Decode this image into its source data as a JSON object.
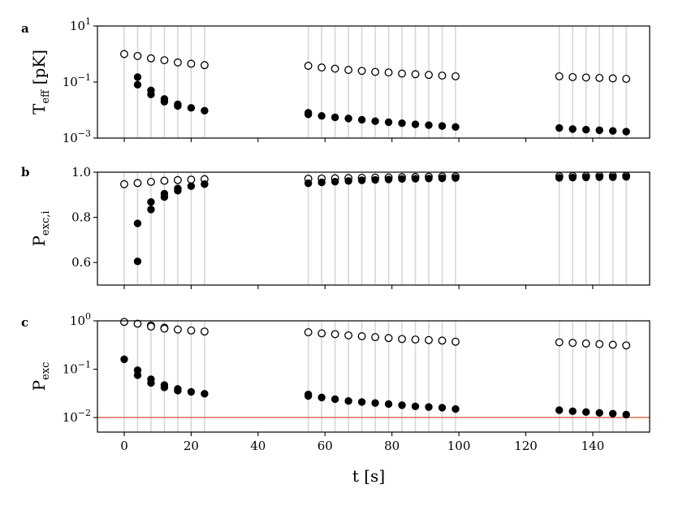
{
  "figure": {
    "xlabel": "t [s]",
    "x_ticks": [
      0,
      20,
      40,
      60,
      80,
      100,
      120,
      140
    ],
    "xlim": [
      -8,
      157
    ],
    "grey_line_times": [
      0,
      4,
      8,
      12,
      16,
      20,
      24,
      55,
      59,
      63,
      67,
      71,
      75,
      79,
      83,
      87,
      91,
      95,
      99,
      130,
      134,
      138,
      142,
      146,
      150
    ],
    "reference_line_color": "#e07860"
  },
  "chart_data": [
    {
      "type": "scatter",
      "panel_letter": "a",
      "ylabel_main": "T",
      "ylabel_sub": "eff",
      "ylabel_unit": " [pK]",
      "yscale": "log",
      "ylim": [
        0.001,
        10
      ],
      "y_ticks": [
        {
          "value": 10,
          "mantissa": "10",
          "exp": "1"
        },
        {
          "value": 0.1,
          "mantissa": "10",
          "exp": "−1"
        },
        {
          "value": 0.001,
          "mantissa": "10",
          "exp": "−3"
        }
      ],
      "series": [
        {
          "marker": "open",
          "x": [
            0,
            4,
            8,
            12,
            16,
            20,
            24,
            55,
            59,
            63,
            67,
            71,
            75,
            79,
            83,
            87,
            91,
            95,
            99,
            130,
            134,
            138,
            142,
            146,
            150
          ],
          "y": [
            1.0,
            0.85,
            0.7,
            0.6,
            0.5,
            0.45,
            0.4,
            0.38,
            0.33,
            0.3,
            0.27,
            0.25,
            0.23,
            0.22,
            0.2,
            0.19,
            0.18,
            0.17,
            0.16,
            0.16,
            0.15,
            0.145,
            0.14,
            0.135,
            0.13
          ]
        },
        {
          "marker": "filled",
          "x": [
            4,
            4,
            8,
            8,
            12,
            12,
            16,
            16,
            20,
            24,
            55,
            55,
            59,
            63,
            67,
            71,
            75,
            79,
            83,
            87,
            91,
            95,
            99,
            130,
            134,
            138,
            142,
            146,
            150
          ],
          "y": [
            0.15,
            0.08,
            0.05,
            0.036,
            0.025,
            0.02,
            0.016,
            0.014,
            0.012,
            0.0095,
            0.008,
            0.007,
            0.0062,
            0.0055,
            0.005,
            0.0045,
            0.004,
            0.0037,
            0.0034,
            0.0031,
            0.0029,
            0.0027,
            0.0025,
            0.0023,
            0.0021,
            0.002,
            0.0019,
            0.0018,
            0.0017
          ]
        }
      ]
    },
    {
      "type": "scatter",
      "panel_letter": "b",
      "ylabel_main": "P",
      "ylabel_sub": "exc,i",
      "ylabel_unit": "",
      "yscale": "linear",
      "ylim": [
        0.5,
        1.0
      ],
      "y_ticks": [
        {
          "value": 1.0,
          "label": "1.0"
        },
        {
          "value": 0.8,
          "label": "0.8"
        },
        {
          "value": 0.6,
          "label": "0.6"
        }
      ],
      "series": [
        {
          "marker": "open",
          "x": [
            0,
            4,
            8,
            12,
            16,
            20,
            24,
            55,
            59,
            63,
            67,
            71,
            75,
            79,
            83,
            87,
            91,
            95,
            99,
            130,
            134,
            138,
            142,
            146,
            150
          ],
          "y": [
            0.947,
            0.952,
            0.957,
            0.962,
            0.965,
            0.967,
            0.969,
            0.971,
            0.972,
            0.973,
            0.974,
            0.975,
            0.976,
            0.977,
            0.978,
            0.979,
            0.98,
            0.981,
            0.981,
            0.982,
            0.983,
            0.983,
            0.984,
            0.984,
            0.984
          ]
        },
        {
          "marker": "filled",
          "x": [
            4,
            4,
            8,
            8,
            12,
            12,
            16,
            16,
            20,
            24,
            55,
            59,
            63,
            67,
            71,
            75,
            79,
            83,
            87,
            91,
            95,
            99,
            130,
            134,
            138,
            142,
            146,
            150
          ],
          "y": [
            0.605,
            0.773,
            0.835,
            0.868,
            0.89,
            0.905,
            0.918,
            0.928,
            0.938,
            0.947,
            0.951,
            0.955,
            0.958,
            0.961,
            0.964,
            0.966,
            0.968,
            0.97,
            0.971,
            0.972,
            0.973,
            0.974,
            0.975,
            0.976,
            0.977,
            0.978,
            0.978,
            0.979
          ]
        }
      ]
    },
    {
      "type": "scatter",
      "panel_letter": "c",
      "ylabel_main": "P",
      "ylabel_sub": "exc",
      "ylabel_unit": "",
      "yscale": "log",
      "ylim": [
        0.005,
        1.0
      ],
      "y_ticks": [
        {
          "value": 1,
          "mantissa": "10",
          "exp": "0"
        },
        {
          "value": 0.1,
          "mantissa": "10",
          "exp": "−1"
        },
        {
          "value": 0.01,
          "mantissa": "10",
          "exp": "−2"
        }
      ],
      "reference_line_y": 0.01,
      "series": [
        {
          "marker": "open",
          "x": [
            0,
            4,
            8,
            8,
            12,
            12,
            16,
            20,
            24,
            55,
            59,
            63,
            67,
            71,
            75,
            79,
            83,
            87,
            91,
            95,
            99,
            130,
            134,
            138,
            142,
            146,
            150
          ],
          "y": [
            0.95,
            0.87,
            0.8,
            0.76,
            0.72,
            0.69,
            0.66,
            0.63,
            0.6,
            0.58,
            0.55,
            0.53,
            0.5,
            0.48,
            0.46,
            0.44,
            0.42,
            0.41,
            0.4,
            0.39,
            0.37,
            0.36,
            0.35,
            0.34,
            0.33,
            0.32,
            0.31
          ]
        },
        {
          "marker": "filled",
          "x": [
            0,
            4,
            4,
            8,
            8,
            12,
            12,
            16,
            16,
            20,
            24,
            55,
            55,
            59,
            63,
            67,
            71,
            75,
            79,
            83,
            87,
            91,
            95,
            99,
            130,
            134,
            138,
            142,
            146,
            150
          ],
          "y": [
            0.16,
            0.095,
            0.075,
            0.062,
            0.052,
            0.047,
            0.042,
            0.039,
            0.036,
            0.034,
            0.031,
            0.03,
            0.028,
            0.026,
            0.024,
            0.022,
            0.021,
            0.02,
            0.019,
            0.018,
            0.017,
            0.0165,
            0.016,
            0.015,
            0.0142,
            0.0135,
            0.013,
            0.0125,
            0.012,
            0.0115
          ]
        }
      ]
    }
  ]
}
